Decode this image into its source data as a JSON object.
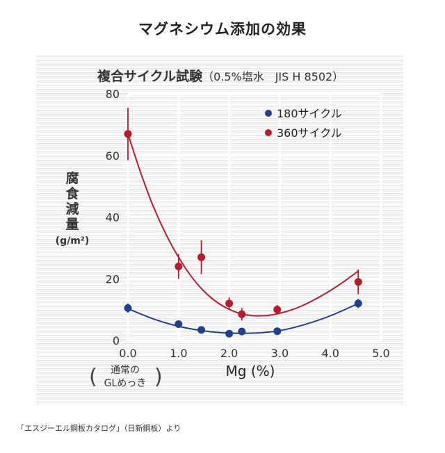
{
  "title": "マグネシウム添加の効果",
  "source_note": "「エスジーエル鋼板カタログ」（日新鋼板）より",
  "chart_data": {
    "type": "scatter",
    "title": "マグネシウム添加の効果",
    "subtitle": "複合サイクル試験",
    "subtitle_note": "（0.5%塩水　JIS H 8502）",
    "xlabel": "Mg (%)",
    "ylabel": [
      "腐",
      "食",
      "減",
      "量"
    ],
    "yunit": "(g/m²)",
    "xlim": [
      0,
      5
    ],
    "ylim": [
      0,
      80
    ],
    "xticks": [
      0,
      1,
      2,
      3,
      4,
      5
    ],
    "xtick_labels": [
      "0.0",
      "1.0",
      "2.0",
      "3.0",
      "4.0",
      "5.0"
    ],
    "yticks": [
      0,
      20,
      40,
      60,
      80
    ],
    "ytick_labels": [
      "0",
      "20",
      "40",
      "60",
      "80"
    ],
    "x_annotation": [
      "通常の",
      "GLめっき"
    ],
    "legend_position": "top-right",
    "series": [
      {
        "name": "180サイクル",
        "color": "#1f3f8f",
        "points": [
          {
            "x": 0.0,
            "y": 10.5,
            "err": 1.5
          },
          {
            "x": 1.0,
            "y": 5.3,
            "err": 0
          },
          {
            "x": 1.45,
            "y": 3.4,
            "err": 0
          },
          {
            "x": 2.0,
            "y": 2.2,
            "err": 0
          },
          {
            "x": 2.25,
            "y": 2.9,
            "err": 0
          },
          {
            "x": 2.95,
            "y": 3.0,
            "err": 0
          },
          {
            "x": 4.55,
            "y": 12.0,
            "err": 1.5
          }
        ],
        "curve": [
          [
            0.0,
            10.3
          ],
          [
            0.5,
            7.0
          ],
          [
            1.0,
            4.6
          ],
          [
            1.5,
            3.1
          ],
          [
            2.0,
            2.4
          ],
          [
            2.5,
            2.4
          ],
          [
            3.0,
            3.2
          ],
          [
            3.5,
            5.2
          ],
          [
            4.0,
            8.0
          ],
          [
            4.55,
            12.0
          ]
        ]
      },
      {
        "name": "360サイクル",
        "color": "#b81c2c",
        "points": [
          {
            "x": 0.0,
            "y": 67.0,
            "err": 8.5
          },
          {
            "x": 1.0,
            "y": 24.0,
            "err": 4.0
          },
          {
            "x": 1.45,
            "y": 27.0,
            "err": 5.5
          },
          {
            "x": 2.0,
            "y": 12.0,
            "err": 2.0
          },
          {
            "x": 2.25,
            "y": 8.5,
            "err": 2.0
          },
          {
            "x": 2.95,
            "y": 10.0,
            "err": 1.5
          },
          {
            "x": 4.55,
            "y": 19.0,
            "err": 4.0
          }
        ],
        "curve": [
          [
            0.0,
            67.0
          ],
          [
            0.25,
            54.5
          ],
          [
            0.5,
            43.5
          ],
          [
            0.75,
            34.5
          ],
          [
            1.0,
            27.0
          ],
          [
            1.25,
            20.8
          ],
          [
            1.5,
            16.0
          ],
          [
            1.75,
            12.5
          ],
          [
            2.0,
            10.1
          ],
          [
            2.25,
            8.6
          ],
          [
            2.5,
            8.0
          ],
          [
            2.75,
            8.1
          ],
          [
            3.0,
            8.8
          ],
          [
            3.25,
            10.0
          ],
          [
            3.5,
            11.7
          ],
          [
            3.75,
            13.8
          ],
          [
            4.0,
            16.2
          ],
          [
            4.25,
            18.9
          ],
          [
            4.55,
            22.5
          ]
        ]
      }
    ]
  }
}
